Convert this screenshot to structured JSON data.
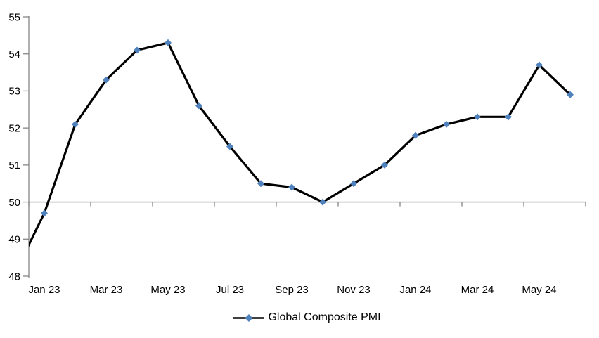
{
  "page": {
    "background": "#FFFFFF"
  },
  "chart_data": {
    "type": "line",
    "title": "",
    "categories": [
      "Dec 22",
      "Jan 23",
      "Feb 23",
      "Mar 23",
      "Apr 23",
      "May 23",
      "Jun 23",
      "Jul 23",
      "Aug 23",
      "Sep 23",
      "Oct 23",
      "Nov 23",
      "Dec 23",
      "Jan 24",
      "Feb 24",
      "Mar 24",
      "Apr 24",
      "May 24",
      "Jun 24"
    ],
    "series": [
      {
        "name": "Global Composite PMI",
        "values": [
          48.0,
          49.7,
          52.1,
          53.3,
          54.1,
          54.3,
          52.6,
          51.5,
          50.5,
          50.4,
          50.0,
          50.5,
          51.0,
          51.8,
          52.1,
          52.3,
          52.3,
          53.7,
          52.9
        ],
        "marker": "diamond"
      }
    ],
    "first_category_clipped_at_left_axis": true,
    "x_axis": {
      "visible_tick_labels": [
        "Jan 23",
        "Mar 23",
        "May 23",
        "Jul 23",
        "Sep 23",
        "Nov 23",
        "Jan 24",
        "Mar 24",
        "May 24"
      ],
      "label_every_n_categories": 2,
      "axis_line_crosses_at_value": 50,
      "tick_marks_every_n_categories": 2
    },
    "y_axis": {
      "min": 48,
      "max": 55,
      "tick_step": 1,
      "tick_labels": [
        "48",
        "49",
        "50",
        "51",
        "52",
        "53",
        "54",
        "55"
      ]
    },
    "legend": {
      "position": "bottom",
      "entries": [
        "Global Composite PMI"
      ]
    },
    "colors": {
      "line": "#000000",
      "marker": "#4F81BD",
      "axis": "#868686",
      "text": "#000000"
    },
    "grid": "none",
    "ylim": [
      48,
      55
    ]
  }
}
